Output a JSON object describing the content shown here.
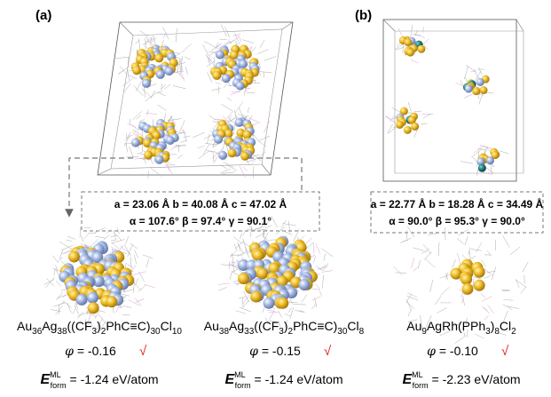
{
  "panels": [
    {
      "label": "(a)"
    },
    {
      "label": "(b)"
    }
  ],
  "lattices": [
    {
      "lengths": "a = 23.06 Å b = 40.08 Å c = 47.02 Å",
      "angles": "α = 107.6° β = 97.4° γ = 90.1°"
    },
    {
      "lengths": "a = 22.77 Å b = 18.28 Å c = 34.49 Å",
      "angles": "α = 90.0° β = 95.3° γ = 90.0°"
    }
  ],
  "structures": [
    {
      "formula": [
        {
          "text": "Au"
        },
        {
          "sub": "36"
        },
        {
          "text": "Ag"
        },
        {
          "sub": "38"
        },
        {
          "text": "((CF"
        },
        {
          "sub": "3"
        },
        {
          "text": ")"
        },
        {
          "sub": "2"
        },
        {
          "text": "PhC≡C)"
        },
        {
          "sub": "30"
        },
        {
          "text": "Cl"
        },
        {
          "sub": "10"
        }
      ],
      "phi": {
        "symbol": "φ",
        "text": " = -0.16"
      },
      "check": "√",
      "energy": {
        "symbol": "E",
        "sup": "ML",
        "sub": "form",
        "text": " = -1.24 eV/atom"
      }
    },
    {
      "formula": [
        {
          "text": "Au"
        },
        {
          "sub": "38"
        },
        {
          "text": "Ag"
        },
        {
          "sub": "33"
        },
        {
          "text": "((CF"
        },
        {
          "sub": "3"
        },
        {
          "text": ")"
        },
        {
          "sub": "2"
        },
        {
          "text": "PhC≡C)"
        },
        {
          "sub": "30"
        },
        {
          "text": "Cl"
        },
        {
          "sub": "8"
        }
      ],
      "phi": {
        "symbol": "φ",
        "text": " = -0.15"
      },
      "check": "√",
      "energy": {
        "symbol": "E",
        "sup": "ML",
        "sub": "form",
        "text": " = -1.24 eV/atom"
      }
    },
    {
      "formula": [
        {
          "text": "Au"
        },
        {
          "sub": "9"
        },
        {
          "text": "AgRh(PPh"
        },
        {
          "sub": "3"
        },
        {
          "text": ")"
        },
        {
          "sub": "8"
        },
        {
          "text": "Cl"
        },
        {
          "sub": "2"
        }
      ],
      "phi": {
        "symbol": "φ",
        "text": " = -0.10"
      },
      "check": "√",
      "energy": {
        "symbol": "E",
        "sup": "ML",
        "sub": "form",
        "text": " = -2.23 eV/atom"
      }
    }
  ]
}
